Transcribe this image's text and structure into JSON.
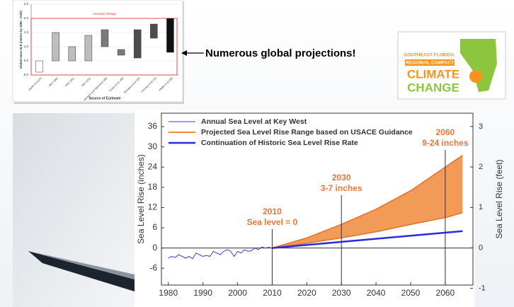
{
  "slide": {
    "callout": "Numerous global projections!",
    "logo": [
      "SOUTHEAST FLORIDA",
      "REGIONAL COMPACT",
      "CLIMATE",
      "CHANGE"
    ]
  },
  "chart_data": [
    {
      "type": "floating-bar",
      "ylabel": "Global mean SLR (meters by 2090 - 2100)",
      "xlabel": "Source of Estimate",
      "annotation": "Scenario Range",
      "scenario_range": [
        0,
        2
      ],
      "categories": [
        "Meehl et al (07)",
        "NRC 1987",
        "NRC 2011",
        "NRC 2012",
        "Vermeer and Rahmstorf (09)",
        "Horton et al. (08)",
        "Jevrejeva et al (10)",
        "Grinsted et al (10)",
        "Pfeffer et al (08)"
      ],
      "low": [
        0.1,
        0.5,
        0.5,
        0.5,
        1.0,
        0.7,
        0.6,
        1.3,
        0.8
      ],
      "high": [
        0.5,
        1.5,
        1.0,
        1.4,
        1.6,
        0.9,
        1.6,
        1.8,
        2.0
      ],
      "colors": [
        "#ffffff",
        "#bdbdbd",
        "#bdbdbd",
        "#bdbdbd",
        "#7a7a7a",
        "#7a7a7a",
        "#4d4d4d",
        "#4d4d4d",
        "#111111"
      ],
      "ylim": [
        0,
        2.5
      ],
      "yticks": [
        {
          "value": 0,
          "label": "0.0"
        },
        {
          "value": 0.5,
          "label": "0.5"
        },
        {
          "value": 1,
          "label": "1.0"
        },
        {
          "value": 1.5,
          "label": "1.5"
        },
        {
          "value": 2,
          "label": "2.0"
        },
        {
          "value": 2.5,
          "label": "2.5"
        }
      ],
      "grid": true
    },
    {
      "type": "line",
      "ylabel": "Sea Level Rise (inches)",
      "y2label": "Sea Level Rise (feet)",
      "xlim": [
        1978,
        2068
      ],
      "xticks": [
        1980,
        1990,
        2000,
        2010,
        2020,
        2030,
        2040,
        2050,
        2060
      ],
      "ylim": [
        -11,
        40
      ],
      "yticks": [
        -6,
        0,
        6,
        12,
        18,
        24,
        30,
        36
      ],
      "y2lim": [
        -0.92,
        3.33
      ],
      "y2ticks": [
        -1,
        0,
        1,
        2,
        3
      ],
      "series": [
        {
          "name": "Annual Sea Level at Key West",
          "kind": "line",
          "color": "#3a3adf",
          "width": 1,
          "x": [
            1980,
            1981,
            1982,
            1983,
            1984,
            1985,
            1986,
            1987,
            1988,
            1989,
            1990,
            1991,
            1992,
            1993,
            1994,
            1995,
            1996,
            1997,
            1998,
            1999,
            2000,
            2001,
            2002,
            2003,
            2004,
            2005,
            2006,
            2007,
            2008,
            2009,
            2010
          ],
          "values": [
            -3,
            -2.5,
            -2.8,
            -2,
            -2.5,
            -3,
            -2.5,
            -3.2,
            -1.5,
            -2,
            -2.5,
            -2.2,
            -2.5,
            -1,
            -1.5,
            -2,
            -1,
            -0.5,
            -1,
            -2.5,
            -1,
            -1.5,
            -0.5,
            -1,
            -0.8,
            0,
            -0.5,
            0.3,
            0,
            0.2,
            0
          ]
        },
        {
          "name": "Projected Sea Level Rise Range based on USACE Guidance",
          "kind": "range",
          "color": "#f08a3c",
          "x": [
            2010,
            2020,
            2030,
            2040,
            2050,
            2060,
            2065
          ],
          "low": [
            0,
            1.4,
            3,
            4.8,
            7,
            9,
            10.5
          ],
          "high": [
            0,
            3,
            7,
            11.5,
            17,
            24,
            27.5
          ]
        },
        {
          "name": "Continuation of Historic Sea Level Rise Rate",
          "kind": "line",
          "color": "#2a2ae0",
          "width": 2.5,
          "x": [
            2010,
            2065
          ],
          "values": [
            0,
            5
          ]
        }
      ],
      "annotations": [
        {
          "x": 2010,
          "lines": [
            "2010",
            "Sea level = 0"
          ]
        },
        {
          "x": 2030,
          "lines": [
            "2030",
            "3-7 inches"
          ]
        },
        {
          "x": 2060,
          "lines": [
            "2060",
            "9-24 inches"
          ]
        }
      ],
      "annotation_color": "#e8773a"
    }
  ]
}
